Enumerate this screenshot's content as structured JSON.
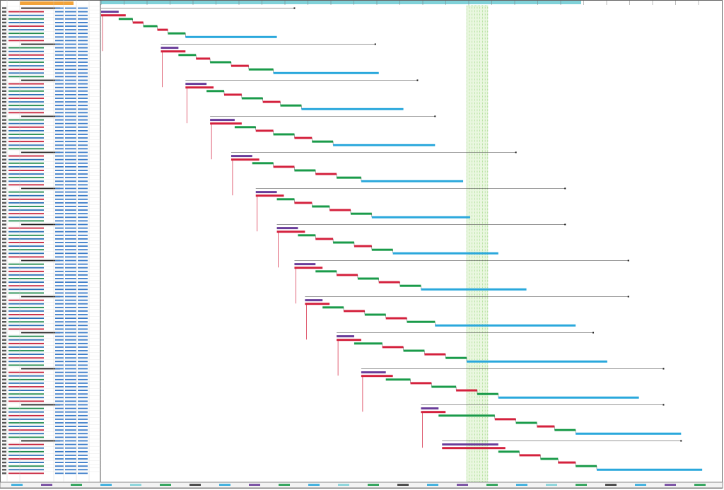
{
  "timeline": {
    "days": 176,
    "band": [
      104,
      110
    ]
  },
  "step_colors": [
    "#1a9b4a",
    "#d4213d"
  ],
  "groups": [
    {
      "start": 0,
      "purple": 5,
      "steps": [
        4,
        3,
        4,
        3,
        5
      ],
      "blue": 26,
      "end": 55
    },
    {
      "start": 17,
      "purple": 5,
      "steps": [
        5,
        4,
        6,
        5,
        7
      ],
      "blue": 30,
      "end": 78
    },
    {
      "start": 24,
      "purple": 6,
      "steps": [
        5,
        5,
        6,
        5,
        6
      ],
      "blue": 29,
      "end": 90
    },
    {
      "start": 31,
      "purple": 7,
      "steps": [
        6,
        5,
        6,
        5,
        6
      ],
      "blue": 29,
      "end": 95
    },
    {
      "start": 37,
      "purple": 6,
      "steps": [
        6,
        6,
        6,
        6,
        7
      ],
      "blue": 29,
      "end": 118
    },
    {
      "start": 44,
      "purple": 6,
      "steps": [
        5,
        5,
        5,
        6,
        6
      ],
      "blue": 28,
      "end": 132
    },
    {
      "start": 50,
      "purple": 6,
      "steps": [
        5,
        5,
        6,
        5,
        6
      ],
      "blue": 30,
      "end": 132
    },
    {
      "start": 55,
      "purple": 6,
      "steps": [
        6,
        6,
        6,
        6,
        6
      ],
      "blue": 30,
      "end": 150
    },
    {
      "start": 58,
      "purple": 5,
      "steps": [
        6,
        6,
        6,
        6,
        8
      ],
      "blue": 40,
      "end": 150
    },
    {
      "start": 67,
      "purple": 5,
      "steps": [
        8,
        6,
        6,
        6,
        6
      ],
      "blue": 40,
      "end": 140
    },
    {
      "start": 74,
      "purple": 7,
      "steps": [
        7,
        6,
        7,
        6,
        6
      ],
      "blue": 40,
      "end": 160
    },
    {
      "start": 91,
      "purple": 5,
      "steps": [
        16,
        6,
        6,
        5,
        6
      ],
      "blue": 30,
      "end": 160
    },
    {
      "start": 97,
      "purple": 16,
      "steps": [
        6,
        6,
        5,
        5,
        6
      ],
      "blue": 30,
      "end": 165
    }
  ]
}
